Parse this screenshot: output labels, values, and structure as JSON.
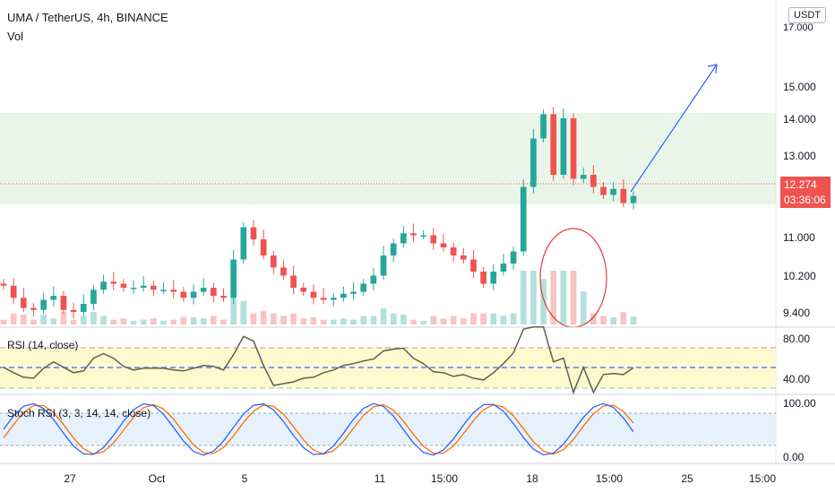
{
  "header": {
    "symbol_line": "UMA / TetherUS, 4h, BINANCE",
    "volume_label": "Vol"
  },
  "currency_badge": "USDT",
  "last_price": {
    "value": "12.274",
    "countdown": "03:36:06"
  },
  "price_axis": {
    "ticks": [
      "15.000",
      "14.000",
      "13.000",
      "11.000",
      "10.200",
      "9.400"
    ],
    "partial_top_tick": "17.000"
  },
  "rsi": {
    "label": "RSI (14, close)",
    "ticks": [
      "80.00",
      "40.00"
    ]
  },
  "stoch": {
    "label": "Stoch RSI (3, 3, 14, 14, close)",
    "ticks": [
      "100.00",
      "0.00"
    ]
  },
  "time_axis": {
    "labels": [
      "27",
      "Oct",
      "5",
      "11",
      "15:00",
      "18",
      "15:00",
      "25",
      "15:00"
    ]
  },
  "colors": {
    "up": "#26a69a",
    "down": "#ef5350",
    "zone": "#e3f2e3",
    "rsi_band": "#fff8c4",
    "stoch_band": "#e3f0fb",
    "drawing": "#2962ff",
    "circle": "#e53935",
    "stoch_k": "#2962ff",
    "stoch_d": "#ff6d00"
  },
  "chart_data": {
    "type": "candlestick",
    "symbol": "UMA / TetherUS",
    "interval": "4h",
    "exchange": "BINANCE",
    "approximate_closes": [
      10.05,
      9.75,
      9.5,
      9.45,
      9.7,
      9.8,
      9.45,
      9.4,
      9.6,
      9.95,
      10.15,
      10.1,
      10.0,
      10.0,
      10.05,
      9.95,
      9.95,
      9.9,
      9.75,
      9.9,
      10.0,
      9.8,
      9.75,
      10.7,
      11.5,
      11.2,
      10.8,
      10.5,
      10.3,
      10.0,
      9.9,
      9.75,
      9.7,
      9.75,
      9.85,
      9.9,
      10.1,
      10.3,
      10.8,
      11.1,
      11.35,
      11.3,
      11.3,
      11.1,
      11.0,
      10.8,
      10.7,
      10.4,
      10.1,
      10.4,
      10.6,
      10.9,
      12.5,
      13.7,
      14.3,
      12.8,
      14.2,
      12.7,
      12.8,
      12.5,
      12.3,
      12.45,
      12.1,
      12.274
    ],
    "annotations": [
      "support/resistance zone 11.8-14.2",
      "red circle around volume spike",
      "blue arrow projecting to ~16.0"
    ],
    "rsi_range": [
      20,
      100
    ],
    "rsi_levels": [
      70,
      50,
      30
    ],
    "stoch_levels": [
      80,
      20
    ]
  }
}
